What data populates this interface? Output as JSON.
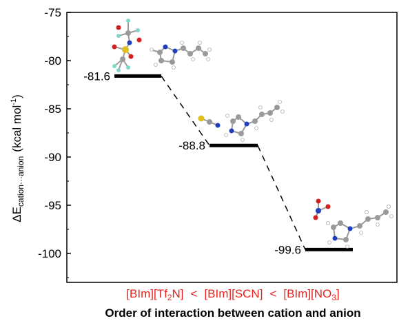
{
  "chart_data": {
    "type": "energy-level diagram",
    "ylabel": {
      "main": "ΔE",
      "subscript": "cation···anion",
      "units": "(kcal mol",
      "units_sup": "-1",
      "units_close": ")"
    },
    "ylim": [
      -103,
      -75
    ],
    "yticks": [
      -75,
      -80,
      -85,
      -90,
      -95,
      -100
    ],
    "xlabel": "Order of interaction between cation and anion",
    "ordering_text": "[BIm][Tf2N]  <  [BIm][SCN]  <  [BIm][NO3]",
    "ordering_color": "#e8211d",
    "level_color": "#000000",
    "levels": [
      {
        "ion_pair": "[BIm][Tf2N]",
        "value": -81.6,
        "label": "-81.6"
      },
      {
        "ion_pair": "[BIm][SCN]",
        "value": -88.8,
        "label": "-88.8"
      },
      {
        "ion_pair": "[BIm][NO3]",
        "value": -99.6,
        "label": "-99.6"
      }
    ],
    "separator": "<",
    "molecule_images": [
      "[BIm][Tf2N] ion-pair structure",
      "[BIm][SCN] ion-pair structure",
      "[BIm][NO3] ion-pair structure"
    ]
  }
}
